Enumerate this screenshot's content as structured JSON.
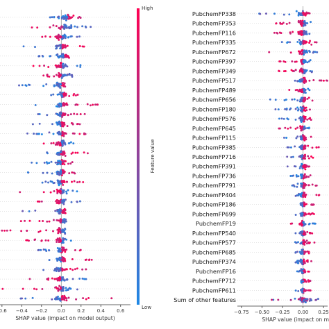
{
  "colors": {
    "low": "#1e88e5",
    "high": "#ff0052",
    "zero_line": "#999999",
    "row_line": "#cccccc",
    "axis": "#333333"
  },
  "colorbar": {
    "high_label": "High",
    "low_label": "Low",
    "title": "Feature value"
  },
  "chart_data": [
    {
      "type": "scatter",
      "subtype": "shap-beeswarm",
      "panel": "left",
      "title": "",
      "xlabel": "SHAP value (impact on model output)",
      "ylabel": "",
      "xlim": [
        -0.62,
        0.7
      ],
      "xticks": [
        -0.6,
        -0.4,
        -0.2,
        0.0,
        0.2,
        0.4,
        0.6
      ],
      "xtick_labels": [
        "-0.6",
        "−0.4",
        "−0.2",
        "0.0",
        "0.2",
        "0.4",
        "0.6"
      ],
      "grid": false,
      "features": [
        {
          "min": -0.15,
          "max": 0.25,
          "core": 0.1,
          "skew": 0.06,
          "pattern": "hi_right"
        },
        {
          "min": -0.35,
          "max": 0.3,
          "core": 0.15,
          "skew": 0.02,
          "pattern": "hi_left"
        },
        {
          "min": -0.25,
          "max": 0.22,
          "core": 0.12,
          "skew": 0.0,
          "pattern": "hi_left"
        },
        {
          "min": -0.4,
          "max": 0.3,
          "core": 0.12,
          "skew": 0.0,
          "pattern": "hi_right"
        },
        {
          "min": -0.25,
          "max": 0.3,
          "core": 0.12,
          "skew": 0.03,
          "pattern": "hi_right"
        },
        {
          "min": -0.3,
          "max": 0.2,
          "core": 0.1,
          "skew": 0.0,
          "pattern": "hi_left"
        },
        {
          "min": -0.2,
          "max": 0.25,
          "core": 0.09,
          "skew": 0.0,
          "pattern": "hi_left"
        },
        {
          "min": -0.45,
          "max": 0.15,
          "core": 0.08,
          "skew": 0.0,
          "pattern": "hi_right"
        },
        {
          "min": -0.2,
          "max": 0.2,
          "core": 0.07,
          "skew": 0.02,
          "pattern": "hi_right"
        },
        {
          "min": -0.3,
          "max": 0.4,
          "core": 0.12,
          "skew": 0.0,
          "pattern": "hi_right"
        },
        {
          "min": -0.25,
          "max": 0.25,
          "core": 0.1,
          "skew": 0.0,
          "pattern": "hi_right"
        },
        {
          "min": -0.3,
          "max": 0.2,
          "core": 0.08,
          "skew": 0.0,
          "pattern": "hi_right"
        },
        {
          "min": -0.35,
          "max": 0.25,
          "core": 0.1,
          "skew": 0.0,
          "pattern": "hi_right"
        },
        {
          "min": -0.25,
          "max": 0.15,
          "core": 0.08,
          "skew": 0.0,
          "pattern": "hi_left"
        },
        {
          "min": -0.2,
          "max": 0.3,
          "core": 0.09,
          "skew": 0.0,
          "pattern": "hi_right"
        },
        {
          "min": -0.3,
          "max": 0.2,
          "core": 0.08,
          "skew": 0.0,
          "pattern": "hi_right"
        },
        {
          "min": -0.35,
          "max": 0.2,
          "core": 0.1,
          "skew": 0.0,
          "pattern": "hi_right"
        },
        {
          "min": -0.2,
          "max": 0.25,
          "core": 0.08,
          "skew": 0.0,
          "pattern": "hi_right"
        },
        {
          "min": -0.45,
          "max": 0.2,
          "core": 0.09,
          "skew": 0.0,
          "pattern": "hi_left"
        },
        {
          "min": -0.25,
          "max": 0.2,
          "core": 0.08,
          "skew": 0.0,
          "pattern": "hi_left"
        },
        {
          "min": -0.4,
          "max": 0.15,
          "core": 0.08,
          "skew": 0.0,
          "pattern": "hi_right"
        },
        {
          "min": -0.5,
          "max": 0.15,
          "core": 0.08,
          "skew": 0.0,
          "pattern": "hi_left"
        },
        {
          "min": -0.6,
          "max": 0.2,
          "core": 0.08,
          "skew": 0.0,
          "pattern": "hi_left"
        },
        {
          "min": -0.4,
          "max": 0.15,
          "core": 0.07,
          "skew": 0.0,
          "pattern": "hi_left"
        },
        {
          "min": -0.25,
          "max": 0.2,
          "core": 0.07,
          "skew": 0.0,
          "pattern": "hi_right"
        },
        {
          "min": -0.2,
          "max": 0.35,
          "core": 0.07,
          "skew": 0.0,
          "pattern": "hi_right"
        },
        {
          "min": -0.2,
          "max": 0.3,
          "core": 0.1,
          "skew": 0.0,
          "pattern": "hi_right"
        },
        {
          "min": -0.35,
          "max": 0.25,
          "core": 0.1,
          "skew": 0.0,
          "pattern": "hi_left"
        },
        {
          "min": -0.6,
          "max": 0.3,
          "core": 0.1,
          "skew": 0.0,
          "pattern": "hi_left"
        },
        {
          "min": -0.45,
          "max": 0.55,
          "core": 0.15,
          "skew": 0.0,
          "pattern": "hi_right"
        }
      ]
    },
    {
      "type": "scatter",
      "subtype": "shap-beeswarm",
      "panel": "right",
      "title": "",
      "xlabel": "SHAP value (impact on mo",
      "ylabel": "",
      "xlim": [
        -0.8,
        0.3
      ],
      "xticks": [
        -0.75,
        -0.5,
        -0.25,
        0.0,
        0.25
      ],
      "xtick_labels": [
        "−0.75",
        "−0.50",
        "−0.25",
        "0.00",
        "0.25"
      ],
      "grid": false,
      "features": [
        {
          "name": "PubchemFP338",
          "min": -0.55,
          "max": 0.25,
          "core": 0.12,
          "skew": 0.0,
          "pattern": "hi_right"
        },
        {
          "name": "PubchemFP353",
          "min": -0.35,
          "max": 0.2,
          "core": 0.1,
          "skew": 0.0,
          "pattern": "hi_left"
        },
        {
          "name": "PubchemFP116",
          "min": -0.4,
          "max": 0.15,
          "core": 0.1,
          "skew": 0.0,
          "pattern": "hi_left"
        },
        {
          "name": "PubchemFP335",
          "min": -0.45,
          "max": 0.2,
          "core": 0.1,
          "skew": 0.0,
          "pattern": "hi_right"
        },
        {
          "name": "PubchemFP672",
          "min": -0.45,
          "max": 0.2,
          "core": 0.1,
          "skew": 0.0,
          "pattern": "hi_left"
        },
        {
          "name": "PubchemFP397",
          "min": -0.3,
          "max": 0.1,
          "core": 0.08,
          "skew": 0.0,
          "pattern": "hi_left"
        },
        {
          "name": "PubchemFP349",
          "min": -0.3,
          "max": 0.12,
          "core": 0.08,
          "skew": 0.0,
          "pattern": "hi_left"
        },
        {
          "name": "PubchemFP517",
          "min": -0.15,
          "max": 0.3,
          "core": 0.07,
          "skew": 0.0,
          "pattern": "hi_right"
        },
        {
          "name": "PubchemFP489",
          "min": -0.2,
          "max": 0.1,
          "core": 0.07,
          "skew": 0.0,
          "pattern": "hi_left"
        },
        {
          "name": "PubchemFP656",
          "min": -0.4,
          "max": 0.15,
          "core": 0.07,
          "skew": 0.0,
          "pattern": "hi_right"
        },
        {
          "name": "PubchemFP180",
          "min": -0.35,
          "max": 0.15,
          "core": 0.07,
          "skew": 0.0,
          "pattern": "hi_right"
        },
        {
          "name": "PubchemFP576",
          "min": -0.3,
          "max": 0.15,
          "core": 0.07,
          "skew": 0.0,
          "pattern": "hi_right"
        },
        {
          "name": "PubchemFP645",
          "min": -0.3,
          "max": 0.1,
          "core": 0.07,
          "skew": 0.0,
          "pattern": "hi_left"
        },
        {
          "name": "PubchemFP115",
          "min": -0.25,
          "max": 0.15,
          "core": 0.06,
          "skew": 0.0,
          "pattern": "hi_right"
        },
        {
          "name": "PubchemFP385",
          "min": -0.2,
          "max": 0.2,
          "core": 0.06,
          "skew": 0.0,
          "pattern": "hi_right"
        },
        {
          "name": "PubchemFP716",
          "min": -0.2,
          "max": 0.2,
          "core": 0.06,
          "skew": 0.0,
          "pattern": "hi_right"
        },
        {
          "name": "PubchemFP391",
          "min": -0.2,
          "max": 0.15,
          "core": 0.06,
          "skew": 0.0,
          "pattern": "hi_right"
        },
        {
          "name": "PubchemFP736",
          "min": -0.15,
          "max": 0.15,
          "core": 0.05,
          "skew": 0.0,
          "pattern": "hi_right"
        },
        {
          "name": "PubchemFP791",
          "min": -0.15,
          "max": 0.2,
          "core": 0.05,
          "skew": 0.0,
          "pattern": "hi_right"
        },
        {
          "name": "PubchemFP404",
          "min": -0.1,
          "max": 0.2,
          "core": 0.05,
          "skew": 0.0,
          "pattern": "hi_right"
        },
        {
          "name": "PubchemFP186",
          "min": -0.1,
          "max": 0.15,
          "core": 0.05,
          "skew": 0.0,
          "pattern": "hi_right"
        },
        {
          "name": "PubchemFP699",
          "min": -0.1,
          "max": 0.2,
          "core": 0.05,
          "skew": 0.0,
          "pattern": "hi_right"
        },
        {
          "name": "PubchemFP19",
          "min": -0.15,
          "max": 0.15,
          "core": 0.05,
          "skew": 0.0,
          "pattern": "hi_left"
        },
        {
          "name": "PubchemFP540",
          "min": -0.1,
          "max": 0.15,
          "core": 0.05,
          "skew": 0.0,
          "pattern": "hi_right"
        },
        {
          "name": "PubchemFP577",
          "min": -0.1,
          "max": 0.15,
          "core": 0.05,
          "skew": 0.0,
          "pattern": "hi_right"
        },
        {
          "name": "PubchemFP685",
          "min": -0.1,
          "max": 0.15,
          "core": 0.05,
          "skew": 0.0,
          "pattern": "hi_right"
        },
        {
          "name": "PubchemFP374",
          "min": -0.1,
          "max": 0.15,
          "core": 0.05,
          "skew": 0.0,
          "pattern": "hi_right"
        },
        {
          "name": "PubchemFP16",
          "min": -0.1,
          "max": 0.1,
          "core": 0.05,
          "skew": 0.0,
          "pattern": "hi_right"
        },
        {
          "name": "PubchemFP712",
          "min": -0.1,
          "max": 0.1,
          "core": 0.05,
          "skew": 0.0,
          "pattern": "hi_right"
        },
        {
          "name": "PubchemFP611",
          "min": -0.1,
          "max": 0.1,
          "core": 0.05,
          "skew": 0.0,
          "pattern": "hi_right"
        },
        {
          "name": "Sum of other features",
          "min": -0.4,
          "max": 0.2,
          "core": 0.12,
          "skew": 0.0,
          "pattern": "hi_mixed"
        }
      ]
    }
  ]
}
